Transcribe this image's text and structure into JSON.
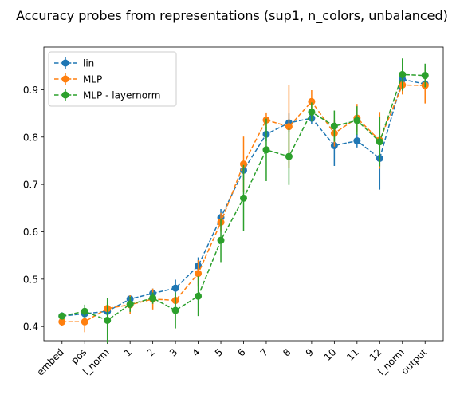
{
  "chart_data": {
    "type": "line",
    "title": "Accuracy probes from representations (sup1, n_colors, unbalanced)",
    "xlabel": "",
    "ylabel": "",
    "categories": [
      "embed",
      "pos",
      "l_norm",
      "1",
      "2",
      "3",
      "4",
      "5",
      "6",
      "7",
      "8",
      "9",
      "10",
      "11",
      "12",
      "l_norm",
      "output"
    ],
    "ylim": [
      0.37,
      0.99
    ],
    "yticks": [
      0.4,
      0.5,
      0.6,
      0.7,
      0.8,
      0.9
    ],
    "grid": false,
    "legend_position": "upper-left",
    "series": [
      {
        "name": "lin",
        "color": "#1f77b4",
        "values": [
          0.422,
          0.427,
          0.432,
          0.458,
          0.47,
          0.481,
          0.528,
          0.63,
          0.73,
          0.806,
          0.83,
          0.84,
          0.782,
          0.792,
          0.755,
          0.922,
          0.912
        ],
        "errors": [
          0.008,
          0.008,
          0.01,
          0.008,
          0.01,
          0.018,
          0.018,
          0.018,
          0.02,
          0.015,
          0.02,
          0.012,
          0.043,
          0.014,
          0.066,
          0.012,
          0.012
        ]
      },
      {
        "name": "MLP",
        "color": "#ff7f0e",
        "values": [
          0.41,
          0.41,
          0.438,
          0.446,
          0.458,
          0.455,
          0.512,
          0.62,
          0.743,
          0.836,
          0.822,
          0.875,
          0.808,
          0.84,
          0.793,
          0.91,
          0.909
        ],
        "errors": [
          0.008,
          0.022,
          0.015,
          0.02,
          0.022,
          0.01,
          0.028,
          0.02,
          0.058,
          0.016,
          0.088,
          0.024,
          0.028,
          0.03,
          0.06,
          0.02,
          0.038
        ]
      },
      {
        "name": "MLP - layernorm",
        "color": "#2ca02c",
        "values": [
          0.422,
          0.432,
          0.413,
          0.447,
          0.46,
          0.434,
          0.464,
          0.582,
          0.671,
          0.773,
          0.759,
          0.853,
          0.823,
          0.835,
          0.79,
          0.932,
          0.93
        ],
        "errors": [
          0.006,
          0.014,
          0.048,
          0.016,
          0.012,
          0.038,
          0.042,
          0.046,
          0.07,
          0.066,
          0.06,
          0.02,
          0.033,
          0.03,
          0.052,
          0.034,
          0.025
        ]
      }
    ]
  }
}
